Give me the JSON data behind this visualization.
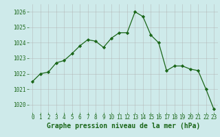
{
  "hours": [
    0,
    1,
    2,
    3,
    4,
    5,
    6,
    7,
    8,
    9,
    10,
    11,
    12,
    13,
    14,
    15,
    16,
    17,
    18,
    19,
    20,
    21,
    22,
    23
  ],
  "pressure": [
    1021.5,
    1022.0,
    1022.1,
    1022.7,
    1022.85,
    1023.3,
    1023.8,
    1024.2,
    1024.1,
    1023.7,
    1024.3,
    1024.65,
    1024.65,
    1026.0,
    1025.7,
    1024.5,
    1024.0,
    1022.2,
    1022.5,
    1022.5,
    1022.3,
    1022.2,
    1021.0,
    1019.7
  ],
  "line_color": "#1a6618",
  "marker_color": "#1a6618",
  "bg_color": "#ceeaea",
  "grid_color": "#b0b0b0",
  "title": "Graphe pression niveau de la mer (hPa)",
  "xlim": [
    -0.5,
    23.5
  ],
  "ylim": [
    1019.5,
    1026.5
  ],
  "yticks": [
    1020,
    1021,
    1022,
    1023,
    1024,
    1025,
    1026
  ],
  "xticks": [
    0,
    1,
    2,
    3,
    4,
    5,
    6,
    7,
    8,
    9,
    10,
    11,
    12,
    13,
    14,
    15,
    16,
    17,
    18,
    19,
    20,
    21,
    22,
    23
  ],
  "title_fontsize": 7.0,
  "tick_fontsize": 5.5,
  "title_color": "#1a6618",
  "tick_color": "#1a6618"
}
